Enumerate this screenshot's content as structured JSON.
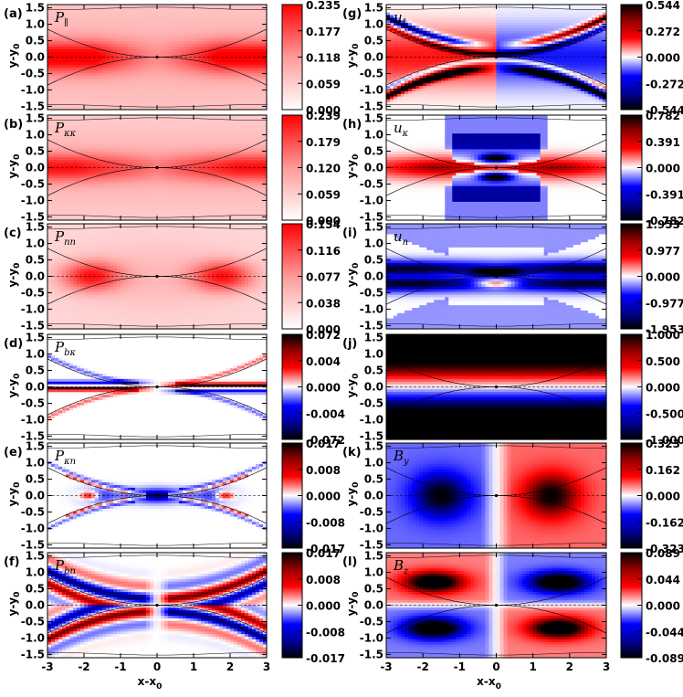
{
  "chart_data": {
    "type": "heatmap",
    "shared_axes": {
      "x_range": [
        -3,
        3
      ],
      "y_range": [
        -1.6,
        1.6
      ],
      "x_ticks": [
        "-3",
        "-2",
        "-1",
        "0",
        "1",
        "2",
        "3"
      ],
      "y_ticks": [
        "1.5",
        "1.0",
        "0.5",
        "0.0",
        "-0.5",
        "-1.0",
        "-1.5"
      ],
      "xlabel_main": "x-x",
      "xlabel_sub": "0",
      "ylabel_main": "y-y",
      "ylabel_sub": "0"
    },
    "panels": [
      {
        "id": "a",
        "letter": "(a)",
        "symbol": "P",
        "sub": "∥",
        "colormap": "white-red",
        "colorbar_ticks": [
          "0.235",
          "0.177",
          "0.118",
          "0.059",
          "0.000"
        ],
        "pattern": "pa"
      },
      {
        "id": "b",
        "letter": "(b)",
        "symbol": "P",
        "sub": "κκ",
        "colormap": "white-red",
        "colorbar_ticks": [
          "0.239",
          "0.179",
          "0.120",
          "0.059",
          "0.000"
        ],
        "pattern": "pb"
      },
      {
        "id": "c",
        "letter": "(c)",
        "symbol": "P",
        "sub": "nn",
        "colormap": "white-red",
        "colorbar_ticks": [
          "0.154",
          "0.116",
          "0.077",
          "0.038",
          "0.000"
        ],
        "pattern": "pc"
      },
      {
        "id": "d",
        "letter": "(d)",
        "symbol": "P",
        "sub": "bκ",
        "colormap": "diverging",
        "colorbar_ticks": [
          "0.072",
          "0.004",
          "0.000",
          "-0.004",
          "-0.072"
        ],
        "pattern": "pd"
      },
      {
        "id": "e",
        "letter": "(e)",
        "symbol": "P",
        "sub": "κn",
        "colormap": "diverging",
        "colorbar_ticks": [
          "0.017",
          "0.008",
          "0.000",
          "-0.008",
          "-0.017"
        ],
        "pattern": "pe"
      },
      {
        "id": "f",
        "letter": "(f)",
        "symbol": "P",
        "sub": "bn",
        "colormap": "diverging",
        "colorbar_ticks": [
          "0.017",
          "0.008",
          "0.000",
          "-0.008",
          "-0.017"
        ],
        "pattern": "pf"
      },
      {
        "id": "g",
        "letter": "(g)",
        "symbol": "u",
        "sub": "∥",
        "colormap": "diverging",
        "colorbar_ticks": [
          "0.544",
          "0.272",
          "0.000",
          "-0.272",
          "-0.544"
        ],
        "pattern": "pg"
      },
      {
        "id": "h",
        "letter": "(h)",
        "symbol": "u",
        "sub": "κ",
        "colormap": "diverging",
        "colorbar_ticks": [
          "0.782",
          "0.391",
          "0.000",
          "-0.391",
          "-0.782"
        ],
        "pattern": "ph"
      },
      {
        "id": "i",
        "letter": "(i)",
        "symbol": "u",
        "sub": "n",
        "colormap": "diverging",
        "colorbar_ticks": [
          "1.953",
          "0.977",
          "0.000",
          "-0.977",
          "-1.953"
        ],
        "pattern": "pi"
      },
      {
        "id": "j",
        "letter": "(j)",
        "symbol": "B",
        "sub": "x",
        "colormap": "diverging",
        "colorbar_ticks": [
          "1.000",
          "0.500",
          "0.000",
          "-0.500",
          "-1.000"
        ],
        "pattern": "pj"
      },
      {
        "id": "k",
        "letter": "(k)",
        "symbol": "B",
        "sub": "y",
        "colormap": "diverging",
        "colorbar_ticks": [
          "0.323",
          "0.162",
          "0.000",
          "-0.162",
          "-0.323"
        ],
        "pattern": "pk"
      },
      {
        "id": "l",
        "letter": "(l)",
        "symbol": "B",
        "sub": "z",
        "colormap": "diverging",
        "colorbar_ticks": [
          "0.089",
          "0.044",
          "0.000",
          "-0.044",
          "-0.089"
        ],
        "pattern": "pl"
      }
    ]
  }
}
